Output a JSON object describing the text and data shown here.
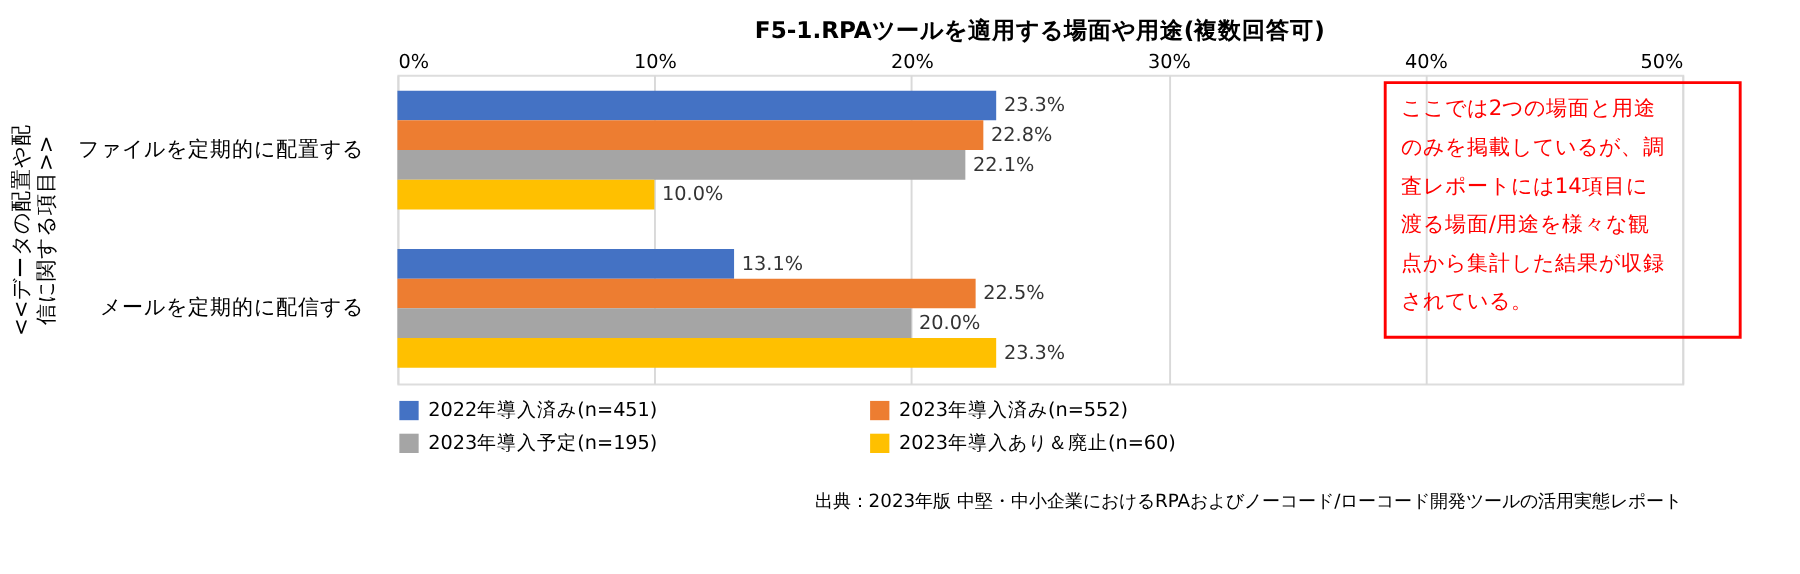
{
  "chart_data": {
    "type": "bar",
    "orientation": "horizontal",
    "title": "F5-1.RPAツールを適用する場面や用途(複数回答可)",
    "ylabel": "<<データの配置や配信に関する項目>>",
    "categories": [
      "ファイルを定期的に配置する",
      "メールを定期的に配信する"
    ],
    "series": [
      {
        "name": "2022年導入済み(n=451)",
        "color": "#4472c4",
        "values": [
          23.3,
          13.1
        ],
        "value_labels": [
          "23.3%",
          "13.1%"
        ]
      },
      {
        "name": "2023年導入済み(n=552)",
        "color": "#ed7d31",
        "values": [
          22.8,
          22.5
        ],
        "value_labels": [
          "22.8%",
          "22.5%"
        ]
      },
      {
        "name": "2023年導入予定(n=195)",
        "color": "#a5a5a5",
        "values": [
          22.1,
          20.0
        ],
        "value_labels": [
          "22.1%",
          "20.0%"
        ]
      },
      {
        "name": "2023年導入あり＆廃止(n=60)",
        "color": "#ffc000",
        "values": [
          10.0,
          23.3
        ],
        "value_labels": [
          "10.0%",
          "23.3%"
        ]
      }
    ],
    "xlim": [
      0,
      50
    ],
    "xticks": [
      {
        "value": 0,
        "label": "0%"
      },
      {
        "value": 10,
        "label": "10%"
      },
      {
        "value": 20,
        "label": "20%"
      },
      {
        "value": 30,
        "label": "30%"
      },
      {
        "value": 40,
        "label": "40%"
      },
      {
        "value": 50,
        "label": "50%"
      }
    ],
    "grid": "x",
    "legend": "bottom",
    "annotations": [
      "ここでは2つの場面と用途のみを掲載しているが、調査レポートには14項目に渡る場面/用途を様々な観点から集計した結果が収録されている。",
      "出典：2023年版 中堅・中小企業におけるRPAおよびノーコード/ローコード開発ツールの活用実態レポート"
    ]
  }
}
